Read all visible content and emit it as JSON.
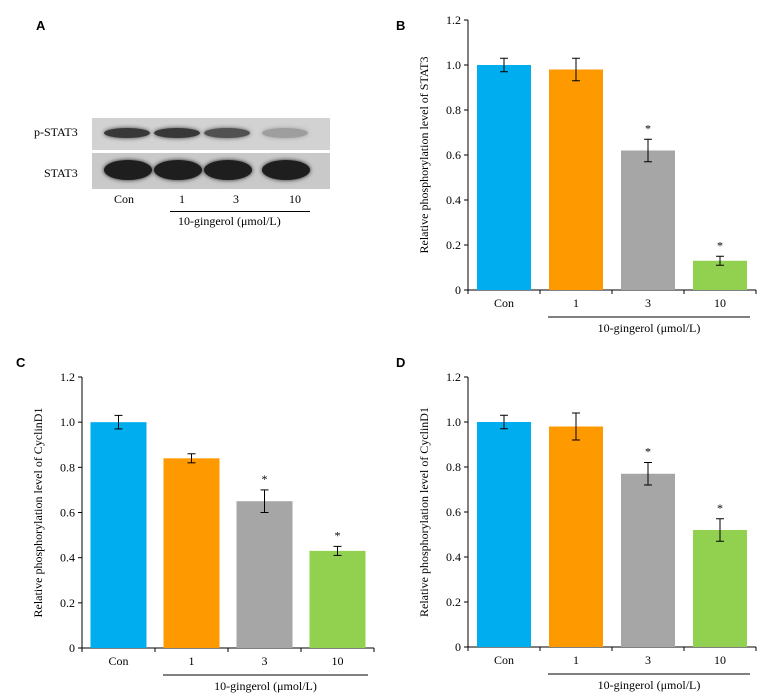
{
  "panels": [
    {
      "letter": "A"
    },
    {
      "letter": "B"
    },
    {
      "letter": "C"
    },
    {
      "letter": "D"
    }
  ],
  "western_blot": {
    "row_labels": [
      "p-STAT3",
      "STAT3"
    ],
    "lanes": [
      "Con",
      "1",
      "3",
      "10"
    ],
    "treatment_label": "10-gingerol (μmol/L)",
    "pstat3_intensity": [
      0.85,
      0.85,
      0.7,
      0.25
    ],
    "stat3_intensity": [
      1.0,
      1.0,
      1.0,
      1.0
    ]
  },
  "chart_data": [
    {
      "panel": "B",
      "type": "bar",
      "categories": [
        "Con",
        "1",
        "3",
        "10"
      ],
      "values": [
        1.0,
        0.98,
        0.62,
        0.13
      ],
      "errors": [
        0.03,
        0.05,
        0.05,
        0.02
      ],
      "significance": [
        "",
        "",
        "*",
        "*"
      ],
      "colors": [
        "#00aeef",
        "#ff9900",
        "#a6a6a6",
        "#92d050"
      ],
      "ylabel": "Relative phosphorylation level of STAT3",
      "xgroup_label": "10-gingerol (μmol/L)",
      "ylim": [
        0,
        1.2
      ],
      "yticks": [
        "0",
        "0.2",
        "0.4",
        "0.6",
        "0.8",
        "1.0",
        "1.2"
      ]
    },
    {
      "panel": "C",
      "type": "bar",
      "categories": [
        "Con",
        "1",
        "3",
        "10"
      ],
      "values": [
        1.0,
        0.84,
        0.65,
        0.43
      ],
      "errors": [
        0.03,
        0.02,
        0.05,
        0.02
      ],
      "significance": [
        "",
        "",
        "*",
        "*"
      ],
      "colors": [
        "#00aeef",
        "#ff9900",
        "#a6a6a6",
        "#92d050"
      ],
      "ylabel": "Relative phosphorylation level of CyclinD1",
      "xgroup_label": "10-gingerol (μmol/L)",
      "ylim": [
        0,
        1.2
      ],
      "yticks": [
        "0",
        "0.2",
        "0.4",
        "0.6",
        "0.8",
        "1.0",
        "1.2"
      ]
    },
    {
      "panel": "D",
      "type": "bar",
      "categories": [
        "Con",
        "1",
        "3",
        "10"
      ],
      "values": [
        1.0,
        0.98,
        0.77,
        0.52
      ],
      "errors": [
        0.03,
        0.06,
        0.05,
        0.05
      ],
      "significance": [
        "",
        "",
        "*",
        "*"
      ],
      "colors": [
        "#00aeef",
        "#ff9900",
        "#a6a6a6",
        "#92d050"
      ],
      "ylabel": "Relative phosphorylation level of CyclinD1",
      "xgroup_label": "10-gingerol (μmol/L)",
      "ylim": [
        0,
        1.2
      ],
      "yticks": [
        "0",
        "0.2",
        "0.4",
        "0.6",
        "0.8",
        "1.0",
        "1.2"
      ]
    }
  ]
}
